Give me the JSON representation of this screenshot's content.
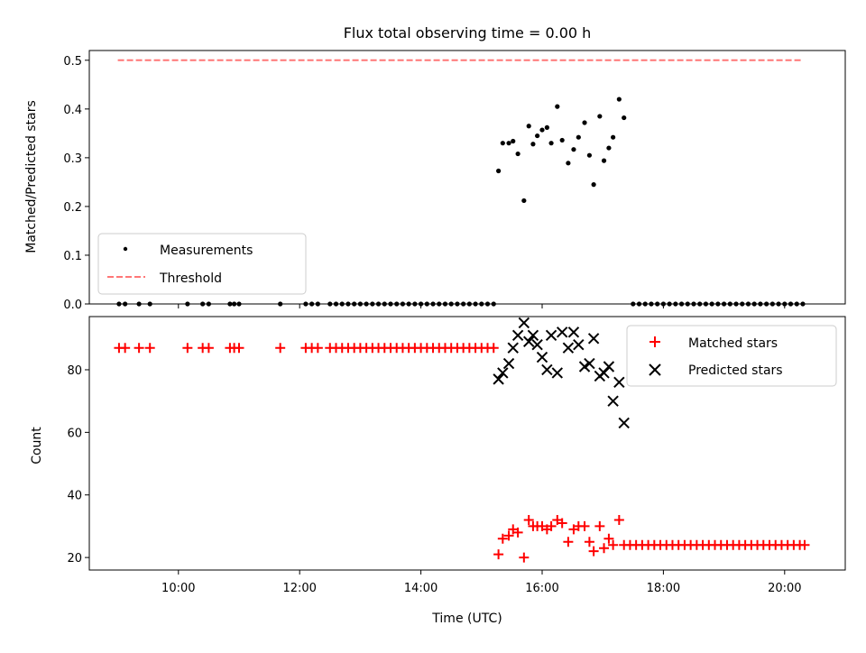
{
  "chart_data": {
    "type": "scatter",
    "title": "Flux total observing time = 0.00 h",
    "xlabel": "Time (UTC)",
    "x_ticks": [
      "10:00",
      "12:00",
      "14:00",
      "16:00",
      "18:00",
      "20:00"
    ],
    "x_tick_hours": [
      10,
      12,
      14,
      16,
      18,
      20
    ],
    "xlim_hours": [
      8.53,
      21.0
    ],
    "panels": [
      {
        "id": "ratio",
        "ylabel": "Matched/Predicted stars",
        "ylim": [
          0.0,
          0.52
        ],
        "y_ticks": [
          0.0,
          0.1,
          0.2,
          0.3,
          0.4,
          0.5
        ],
        "y_tick_labels": [
          "0.0",
          "0.1",
          "0.2",
          "0.3",
          "0.4",
          "0.5"
        ],
        "legend_position": "lower-left",
        "series": [
          {
            "name": "Measurements",
            "marker": "dot",
            "color": "#000000",
            "points": [
              [
                9.02,
                0
              ],
              [
                9.12,
                0
              ],
              [
                9.35,
                0
              ],
              [
                9.53,
                0
              ],
              [
                10.15,
                0
              ],
              [
                10.4,
                0
              ],
              [
                10.5,
                0
              ],
              [
                10.85,
                0
              ],
              [
                10.92,
                0
              ],
              [
                11.0,
                0
              ],
              [
                11.68,
                0
              ],
              [
                12.1,
                0
              ],
              [
                12.2,
                0
              ],
              [
                12.3,
                0
              ],
              [
                12.5,
                0
              ],
              [
                12.6,
                0
              ],
              [
                12.7,
                0
              ],
              [
                12.8,
                0
              ],
              [
                12.9,
                0
              ],
              [
                13.0,
                0
              ],
              [
                13.1,
                0
              ],
              [
                13.2,
                0
              ],
              [
                13.3,
                0
              ],
              [
                13.4,
                0
              ],
              [
                13.5,
                0
              ],
              [
                13.6,
                0
              ],
              [
                13.7,
                0
              ],
              [
                13.8,
                0
              ],
              [
                13.9,
                0
              ],
              [
                14.0,
                0
              ],
              [
                14.1,
                0
              ],
              [
                14.2,
                0
              ],
              [
                14.3,
                0
              ],
              [
                14.4,
                0
              ],
              [
                14.5,
                0
              ],
              [
                14.6,
                0
              ],
              [
                14.7,
                0
              ],
              [
                14.8,
                0
              ],
              [
                14.9,
                0
              ],
              [
                15.0,
                0
              ],
              [
                15.1,
                0
              ],
              [
                15.2,
                0
              ],
              [
                15.28,
                0.273
              ],
              [
                15.35,
                0.33
              ],
              [
                15.45,
                0.33
              ],
              [
                15.52,
                0.334
              ],
              [
                15.6,
                0.308
              ],
              [
                15.7,
                0.212
              ],
              [
                15.78,
                0.365
              ],
              [
                15.85,
                0.328
              ],
              [
                15.92,
                0.345
              ],
              [
                16.0,
                0.357
              ],
              [
                16.08,
                0.362
              ],
              [
                16.15,
                0.33
              ],
              [
                16.25,
                0.405
              ],
              [
                16.33,
                0.336
              ],
              [
                16.43,
                0.289
              ],
              [
                16.52,
                0.317
              ],
              [
                16.6,
                0.342
              ],
              [
                16.7,
                0.372
              ],
              [
                16.78,
                0.305
              ],
              [
                16.85,
                0.245
              ],
              [
                16.95,
                0.385
              ],
              [
                17.02,
                0.294
              ],
              [
                17.1,
                0.32
              ],
              [
                17.17,
                0.342
              ],
              [
                17.27,
                0.42
              ],
              [
                17.35,
                0.382
              ],
              [
                17.5,
                0
              ],
              [
                17.6,
                0
              ],
              [
                17.7,
                0
              ],
              [
                17.8,
                0
              ],
              [
                17.9,
                0
              ],
              [
                18.0,
                0
              ],
              [
                18.1,
                0
              ],
              [
                18.2,
                0
              ],
              [
                18.3,
                0
              ],
              [
                18.4,
                0
              ],
              [
                18.5,
                0
              ],
              [
                18.6,
                0
              ],
              [
                18.7,
                0
              ],
              [
                18.8,
                0
              ],
              [
                18.9,
                0
              ],
              [
                19.0,
                0
              ],
              [
                19.1,
                0
              ],
              [
                19.2,
                0
              ],
              [
                19.3,
                0
              ],
              [
                19.4,
                0
              ],
              [
                19.5,
                0
              ],
              [
                19.6,
                0
              ],
              [
                19.7,
                0
              ],
              [
                19.8,
                0
              ],
              [
                19.9,
                0
              ],
              [
                20.0,
                0
              ],
              [
                20.1,
                0
              ],
              [
                20.2,
                0
              ],
              [
                20.3,
                0
              ]
            ]
          },
          {
            "name": "Threshold",
            "marker": "dashed-line",
            "color": "#ff7777",
            "points": [
              [
                9.0,
                0.5
              ],
              [
                20.3,
                0.5
              ]
            ]
          }
        ]
      },
      {
        "id": "count",
        "ylabel": "Count",
        "ylim": [
          16,
          97
        ],
        "y_ticks": [
          20,
          40,
          60,
          80
        ],
        "y_tick_labels": [
          "20",
          "40",
          "60",
          "80"
        ],
        "legend_position": "upper-right",
        "series": [
          {
            "name": "Matched stars",
            "marker": "plus",
            "color": "#ff0000",
            "points": [
              [
                9.02,
                87
              ],
              [
                9.12,
                87
              ],
              [
                9.35,
                87
              ],
              [
                9.53,
                87
              ],
              [
                10.15,
                87
              ],
              [
                10.4,
                87
              ],
              [
                10.5,
                87
              ],
              [
                10.85,
                87
              ],
              [
                10.92,
                87
              ],
              [
                11.0,
                87
              ],
              [
                11.68,
                87
              ],
              [
                12.1,
                87
              ],
              [
                12.2,
                87
              ],
              [
                12.3,
                87
              ],
              [
                12.5,
                87
              ],
              [
                12.6,
                87
              ],
              [
                12.7,
                87
              ],
              [
                12.8,
                87
              ],
              [
                12.9,
                87
              ],
              [
                13.0,
                87
              ],
              [
                13.1,
                87
              ],
              [
                13.2,
                87
              ],
              [
                13.3,
                87
              ],
              [
                13.4,
                87
              ],
              [
                13.5,
                87
              ],
              [
                13.6,
                87
              ],
              [
                13.7,
                87
              ],
              [
                13.8,
                87
              ],
              [
                13.9,
                87
              ],
              [
                14.0,
                87
              ],
              [
                14.1,
                87
              ],
              [
                14.2,
                87
              ],
              [
                14.3,
                87
              ],
              [
                14.4,
                87
              ],
              [
                14.5,
                87
              ],
              [
                14.6,
                87
              ],
              [
                14.7,
                87
              ],
              [
                14.8,
                87
              ],
              [
                14.9,
                87
              ],
              [
                15.0,
                87
              ],
              [
                15.1,
                87
              ],
              [
                15.2,
                87
              ],
              [
                15.28,
                21
              ],
              [
                15.35,
                26
              ],
              [
                15.45,
                27
              ],
              [
                15.52,
                29
              ],
              [
                15.6,
                28
              ],
              [
                15.7,
                20
              ],
              [
                15.78,
                32
              ],
              [
                15.85,
                30
              ],
              [
                15.92,
                30
              ],
              [
                16.0,
                30
              ],
              [
                16.08,
                29
              ],
              [
                16.15,
                30
              ],
              [
                16.25,
                32
              ],
              [
                16.33,
                31
              ],
              [
                16.43,
                25
              ],
              [
                16.52,
                29
              ],
              [
                16.6,
                30
              ],
              [
                16.7,
                30
              ],
              [
                16.78,
                25
              ],
              [
                16.85,
                22
              ],
              [
                16.95,
                30
              ],
              [
                17.02,
                23
              ],
              [
                17.1,
                26
              ],
              [
                17.17,
                24
              ],
              [
                17.27,
                32
              ],
              [
                17.35,
                24
              ],
              [
                17.45,
                24
              ],
              [
                17.55,
                24
              ],
              [
                17.65,
                24
              ],
              [
                17.75,
                24
              ],
              [
                17.85,
                24
              ],
              [
                17.95,
                24
              ],
              [
                18.05,
                24
              ],
              [
                18.15,
                24
              ],
              [
                18.25,
                24
              ],
              [
                18.35,
                24
              ],
              [
                18.45,
                24
              ],
              [
                18.55,
                24
              ],
              [
                18.65,
                24
              ],
              [
                18.75,
                24
              ],
              [
                18.85,
                24
              ],
              [
                18.95,
                24
              ],
              [
                19.05,
                24
              ],
              [
                19.15,
                24
              ],
              [
                19.25,
                24
              ],
              [
                19.35,
                24
              ],
              [
                19.45,
                24
              ],
              [
                19.55,
                24
              ],
              [
                19.65,
                24
              ],
              [
                19.75,
                24
              ],
              [
                19.85,
                24
              ],
              [
                19.95,
                24
              ],
              [
                20.05,
                24
              ],
              [
                20.15,
                24
              ],
              [
                20.25,
                24
              ],
              [
                20.33,
                24
              ]
            ]
          },
          {
            "name": "Predicted stars",
            "marker": "x",
            "color": "#000000",
            "points": [
              [
                15.28,
                77
              ],
              [
                15.35,
                79
              ],
              [
                15.45,
                82
              ],
              [
                15.52,
                87
              ],
              [
                15.6,
                91
              ],
              [
                15.7,
                95
              ],
              [
                15.78,
                89
              ],
              [
                15.85,
                91
              ],
              [
                15.92,
                88
              ],
              [
                16.0,
                84
              ],
              [
                16.08,
                80
              ],
              [
                16.15,
                91
              ],
              [
                16.25,
                79
              ],
              [
                16.33,
                92
              ],
              [
                16.43,
                87
              ],
              [
                16.52,
                92
              ],
              [
                16.6,
                88
              ],
              [
                16.7,
                81
              ],
              [
                16.78,
                82
              ],
              [
                16.85,
                90
              ],
              [
                16.95,
                78
              ],
              [
                17.02,
                79
              ],
              [
                17.1,
                81
              ],
              [
                17.17,
                70
              ],
              [
                17.27,
                76
              ],
              [
                17.35,
                63
              ]
            ]
          }
        ]
      }
    ]
  }
}
